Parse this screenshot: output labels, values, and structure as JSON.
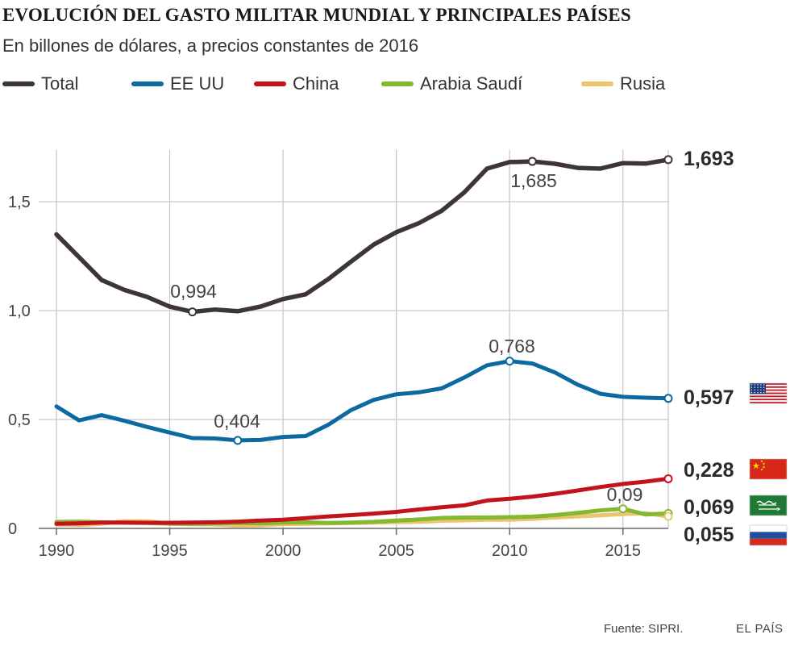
{
  "chart_data": {
    "type": "line",
    "title": "EVOLUCIÓN DEL GASTO MILITAR MUNDIAL Y PRINCIPALES PAÍSES",
    "subtitle": "En billones de dólares, a precios constantes de 2016",
    "x": [
      1990,
      1991,
      1992,
      1993,
      1994,
      1995,
      1996,
      1997,
      1998,
      1999,
      2000,
      2001,
      2002,
      2003,
      2004,
      2005,
      2006,
      2007,
      2008,
      2009,
      2010,
      2011,
      2012,
      2013,
      2014,
      2015,
      2016,
      2017
    ],
    "xticks": [
      1990,
      1995,
      2000,
      2005,
      2010,
      2015
    ],
    "yticks": [
      0,
      0.5,
      1.0,
      1.5
    ],
    "ytick_labels": [
      "0",
      "0,5",
      "1,0",
      "1,5"
    ],
    "ylim": [
      0,
      1.75
    ],
    "xlim": [
      1990,
      2017
    ],
    "series": [
      {
        "name": "Total",
        "color": "#3d3538",
        "values": [
          1.35,
          1.245,
          1.14,
          1.095,
          1.063,
          1.018,
          0.994,
          1.005,
          0.997,
          1.018,
          1.053,
          1.075,
          1.145,
          1.225,
          1.303,
          1.36,
          1.402,
          1.458,
          1.543,
          1.652,
          1.682,
          1.685,
          1.674,
          1.655,
          1.652,
          1.677,
          1.675,
          1.693
        ],
        "end_label": "1,693"
      },
      {
        "name": "EE UU",
        "color": "#0c6aa0",
        "values": [
          0.56,
          0.496,
          0.52,
          0.494,
          0.466,
          0.44,
          0.415,
          0.413,
          0.404,
          0.406,
          0.42,
          0.424,
          0.476,
          0.543,
          0.59,
          0.616,
          0.625,
          0.643,
          0.693,
          0.749,
          0.768,
          0.757,
          0.716,
          0.66,
          0.618,
          0.604,
          0.6,
          0.597
        ],
        "end_label": "0,597"
      },
      {
        "name": "China",
        "color": "#c3141d",
        "values": [
          0.021,
          0.023,
          0.027,
          0.027,
          0.026,
          0.026,
          0.027,
          0.028,
          0.031,
          0.036,
          0.04,
          0.047,
          0.055,
          0.061,
          0.068,
          0.076,
          0.087,
          0.097,
          0.106,
          0.128,
          0.136,
          0.146,
          0.159,
          0.174,
          0.19,
          0.204,
          0.215,
          0.228
        ],
        "end_label": "0,228"
      },
      {
        "name": "Arabia Saudí",
        "color": "#84b82e",
        "values": [
          0.03,
          0.031,
          0.028,
          0.026,
          0.025,
          0.022,
          0.021,
          0.023,
          0.025,
          0.023,
          0.027,
          0.028,
          0.025,
          0.027,
          0.03,
          0.036,
          0.041,
          0.048,
          0.05,
          0.05,
          0.052,
          0.054,
          0.061,
          0.071,
          0.083,
          0.09,
          0.064,
          0.069
        ],
        "end_label": "0,069"
      },
      {
        "name": "Rusia",
        "color": "#edc46e",
        "values": [
          0.018,
          0.016,
          0.021,
          0.033,
          0.033,
          0.022,
          0.019,
          0.018,
          0.012,
          0.014,
          0.02,
          0.021,
          0.023,
          0.025,
          0.027,
          0.029,
          0.03,
          0.035,
          0.037,
          0.04,
          0.04,
          0.044,
          0.05,
          0.055,
          0.06,
          0.066,
          0.07,
          0.055
        ],
        "end_label": "0,055"
      }
    ],
    "annotations": [
      {
        "series": "Total",
        "x": 1996,
        "value": 0.994,
        "label": "0,994"
      },
      {
        "series": "Total",
        "x": 2011,
        "value": 1.685,
        "label": "1,685"
      },
      {
        "series": "EE UU",
        "x": 1998,
        "value": 0.404,
        "label": "0,404"
      },
      {
        "series": "EE UU",
        "x": 2010,
        "value": 0.768,
        "label": "0,768"
      },
      {
        "series": "Arabia Saudí",
        "x": 2015,
        "value": 0.09,
        "label": "0,09"
      }
    ],
    "flag_icons": [
      "us-flag-icon",
      "china-flag-icon",
      "saudi-flag-icon",
      "russia-flag-icon"
    ],
    "source": "Fuente: SIPRI.",
    "brand": "EL PAÍS"
  }
}
